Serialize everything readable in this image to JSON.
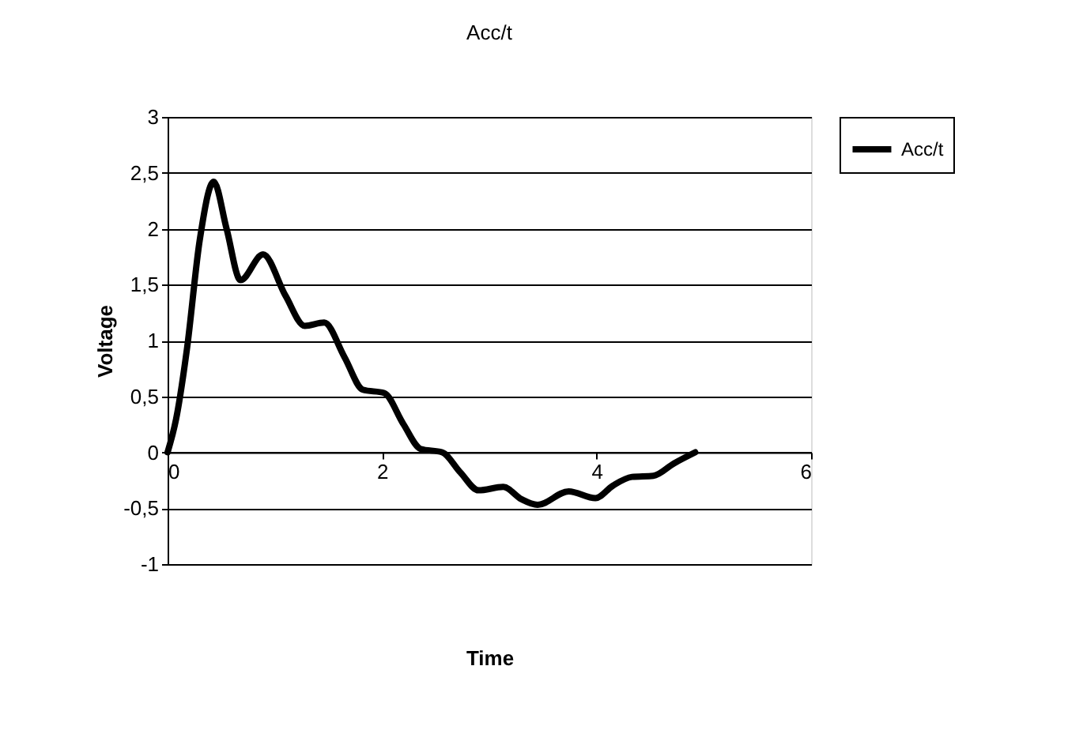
{
  "chart_data": {
    "type": "line",
    "title": "Acc/t",
    "xlabel": "Time",
    "ylabel": "Voltage",
    "xlim": [
      0,
      6
    ],
    "xticks": [
      0,
      2,
      4,
      6
    ],
    "ylim": [
      -1,
      3
    ],
    "yticks": [
      {
        "value": -1,
        "label": "-1"
      },
      {
        "value": -0.5,
        "label": "-0,5"
      },
      {
        "value": 0,
        "label": "0"
      },
      {
        "value": 0.5,
        "label": "0,5"
      },
      {
        "value": 1,
        "label": "1"
      },
      {
        "value": 1.5,
        "label": "1,5"
      },
      {
        "value": 2,
        "label": "2"
      },
      {
        "value": 2.5,
        "label": "2,5"
      },
      {
        "value": 3,
        "label": "3"
      }
    ],
    "grid": "y",
    "legend": "right",
    "marker": "none",
    "line_style": "solid",
    "series": [
      {
        "name": "Acc/t",
        "color": "#000000",
        "x": [
          0,
          0.08,
          0.18,
          0.3,
          0.43,
          0.55,
          0.68,
          0.89,
          1.1,
          1.28,
          1.46,
          1.65,
          1.82,
          2.02,
          2.2,
          2.36,
          2.56,
          2.73,
          2.9,
          3.13,
          3.3,
          3.45,
          3.74,
          3.99,
          4.15,
          4.33,
          4.53,
          4.72,
          4.92
        ],
        "values": [
          0,
          0.3,
          0.92,
          1.9,
          2.42,
          2.0,
          1.54,
          1.77,
          1.4,
          1.13,
          1.16,
          0.85,
          0.56,
          0.53,
          0.25,
          0.03,
          0,
          -0.18,
          -0.34,
          -0.31,
          -0.42,
          -0.47,
          -0.35,
          -0.41,
          -0.3,
          -0.22,
          -0.21,
          -0.1,
          0
        ]
      }
    ]
  }
}
